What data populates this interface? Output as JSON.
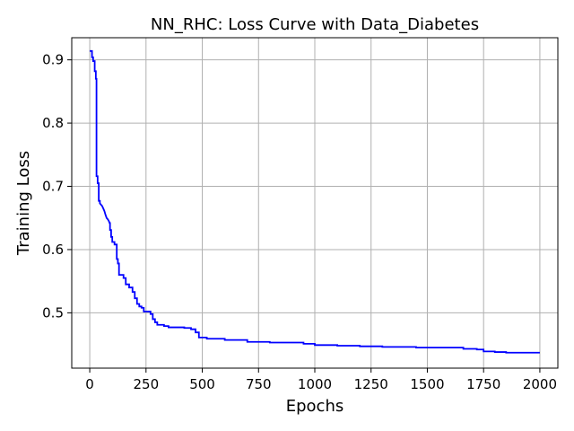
{
  "chart_data": {
    "type": "line",
    "title": "NN_RHC: Loss Curve with Data_Diabetes",
    "xlabel": "Epochs",
    "ylabel": "Training Loss",
    "xlim": [
      -80,
      2080
    ],
    "ylim": [
      0.4125,
      0.935
    ],
    "grid": true,
    "x_ticks": [
      0,
      250,
      500,
      750,
      1000,
      1250,
      1500,
      1750,
      2000
    ],
    "y_ticks": [
      0.5,
      0.6,
      0.7,
      0.8,
      0.9
    ],
    "x_tick_labels": [
      "0",
      "250",
      "500",
      "750",
      "1000",
      "1250",
      "1500",
      "1750",
      "2000"
    ],
    "y_tick_labels": [
      "0.5",
      "0.6",
      "0.7",
      "0.8",
      "0.9"
    ],
    "line_color": "#0000ff",
    "grid_color": "#b0b0b0",
    "series": [
      {
        "x": [
          0,
          10,
          10,
          15,
          15,
          22,
          22,
          27,
          27,
          30,
          30,
          35,
          35,
          40,
          40,
          45,
          45,
          55,
          60,
          65,
          70,
          75,
          80,
          85,
          88,
          90,
          90,
          95,
          95,
          100,
          100,
          110,
          110,
          120,
          120,
          125,
          125,
          130,
          130,
          150,
          150,
          160,
          160,
          175,
          175,
          190,
          190,
          200,
          200,
          210,
          210,
          220,
          220,
          230,
          230,
          240,
          240,
          270,
          270,
          280,
          280,
          290,
          290,
          300,
          300,
          330,
          330,
          350,
          350,
          420,
          420,
          450,
          450,
          470,
          470,
          485,
          485,
          520,
          520,
          600,
          600,
          700,
          700,
          800,
          800,
          950,
          950,
          1000,
          1000,
          1100,
          1100,
          1200,
          1200,
          1300,
          1300,
          1450,
          1450,
          1660,
          1660,
          1720,
          1720,
          1750,
          1750,
          1800,
          1800,
          1850,
          1850,
          2000
        ],
        "y": [
          0.914,
          0.914,
          0.904,
          0.904,
          0.898,
          0.898,
          0.882,
          0.882,
          0.87,
          0.87,
          0.716,
          0.716,
          0.705,
          0.705,
          0.677,
          0.677,
          0.673,
          0.669,
          0.665,
          0.661,
          0.655,
          0.65,
          0.648,
          0.645,
          0.642,
          0.642,
          0.631,
          0.631,
          0.62,
          0.62,
          0.612,
          0.612,
          0.608,
          0.608,
          0.585,
          0.585,
          0.578,
          0.578,
          0.56,
          0.56,
          0.555,
          0.555,
          0.545,
          0.545,
          0.54,
          0.54,
          0.533,
          0.533,
          0.523,
          0.523,
          0.514,
          0.514,
          0.51,
          0.51,
          0.508,
          0.508,
          0.502,
          0.502,
          0.498,
          0.498,
          0.49,
          0.49,
          0.485,
          0.485,
          0.481,
          0.481,
          0.479,
          0.479,
          0.477,
          0.477,
          0.476,
          0.476,
          0.474,
          0.474,
          0.469,
          0.469,
          0.461,
          0.461,
          0.459,
          0.459,
          0.457,
          0.457,
          0.454,
          0.454,
          0.453,
          0.453,
          0.451,
          0.451,
          0.449,
          0.449,
          0.448,
          0.448,
          0.447,
          0.447,
          0.446,
          0.446,
          0.445,
          0.445,
          0.443,
          0.443,
          0.442,
          0.442,
          0.439,
          0.439,
          0.438,
          0.438,
          0.437,
          0.437
        ]
      }
    ]
  }
}
